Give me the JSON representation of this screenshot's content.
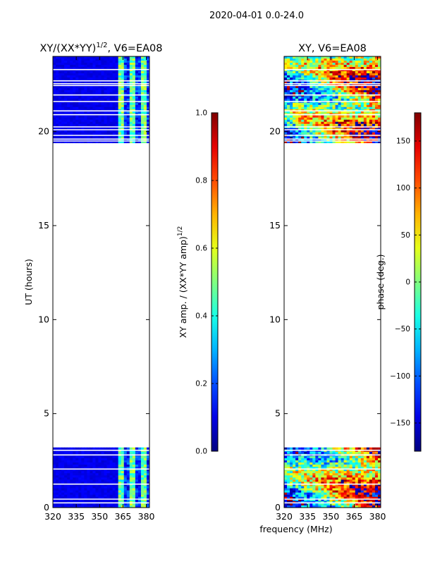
{
  "figure": {
    "suptitle": "2020-04-01 0.0-24.0",
    "shared_xlabel": "frequency (MHz)"
  },
  "chart_data": [
    {
      "type": "heatmap",
      "title_main": "XY/(XX*YY)",
      "title_sup": "1/2",
      "title_rest": ", V6=EA08",
      "xlabel": "",
      "ylabel": "UT (hours)",
      "xlim": [
        320,
        382
      ],
      "ylim": [
        0,
        24
      ],
      "xticks": [
        320,
        335,
        350,
        365,
        380
      ],
      "yticks": [
        0,
        5,
        10,
        15,
        20
      ],
      "data_ranges_hours": [
        [
          0,
          3.2
        ],
        [
          19.4,
          24
        ]
      ],
      "gap_lines_hours": [
        0.25,
        0.45,
        1.25,
        2.05,
        2.8,
        3.05,
        19.5,
        19.6,
        19.8,
        20.1,
        20.25,
        20.9,
        21.1,
        21.6,
        21.95,
        22.45,
        22.55,
        22.7,
        23.3
      ],
      "colormap": "jet",
      "pattern": "amplitude",
      "colorbar": {
        "label_main": "XY amp. / (XX*YY amp)",
        "label_sup": "1/2",
        "vmin": 0.0,
        "vmax": 1.0,
        "ticks": [
          0.0,
          0.2,
          0.4,
          0.6,
          0.8,
          1.0
        ],
        "tick_labels": [
          "0.0",
          "0.2",
          "0.4",
          "0.6",
          "0.8",
          "1.0"
        ]
      }
    },
    {
      "type": "heatmap",
      "title_main": "XY, V6=EA08",
      "title_sup": "",
      "title_rest": "",
      "xlabel": "frequency (MHz)",
      "ylabel": "",
      "xlim": [
        320,
        382
      ],
      "ylim": [
        0,
        24
      ],
      "xticks": [
        320,
        335,
        350,
        365,
        380
      ],
      "yticks": [
        0,
        5,
        10,
        15,
        20
      ],
      "data_ranges_hours": [
        [
          0,
          3.2
        ],
        [
          19.4,
          24
        ]
      ],
      "gap_lines_hours": [
        0.25,
        0.45,
        1.25,
        2.05,
        2.8,
        3.05,
        19.5,
        19.6,
        19.8,
        20.1,
        20.25,
        20.9,
        21.1,
        21.6,
        21.95,
        22.45,
        22.55,
        22.7,
        23.3
      ],
      "colormap": "jet",
      "pattern": "phase",
      "colorbar": {
        "label_main": "phase (deg.)",
        "label_sup": "",
        "vmin": -180,
        "vmax": 180,
        "ticks": [
          -150,
          -100,
          -50,
          0,
          50,
          100,
          150
        ],
        "tick_labels": [
          "−150",
          "−100",
          "−50",
          "0",
          "50",
          "100",
          "150"
        ]
      }
    }
  ]
}
